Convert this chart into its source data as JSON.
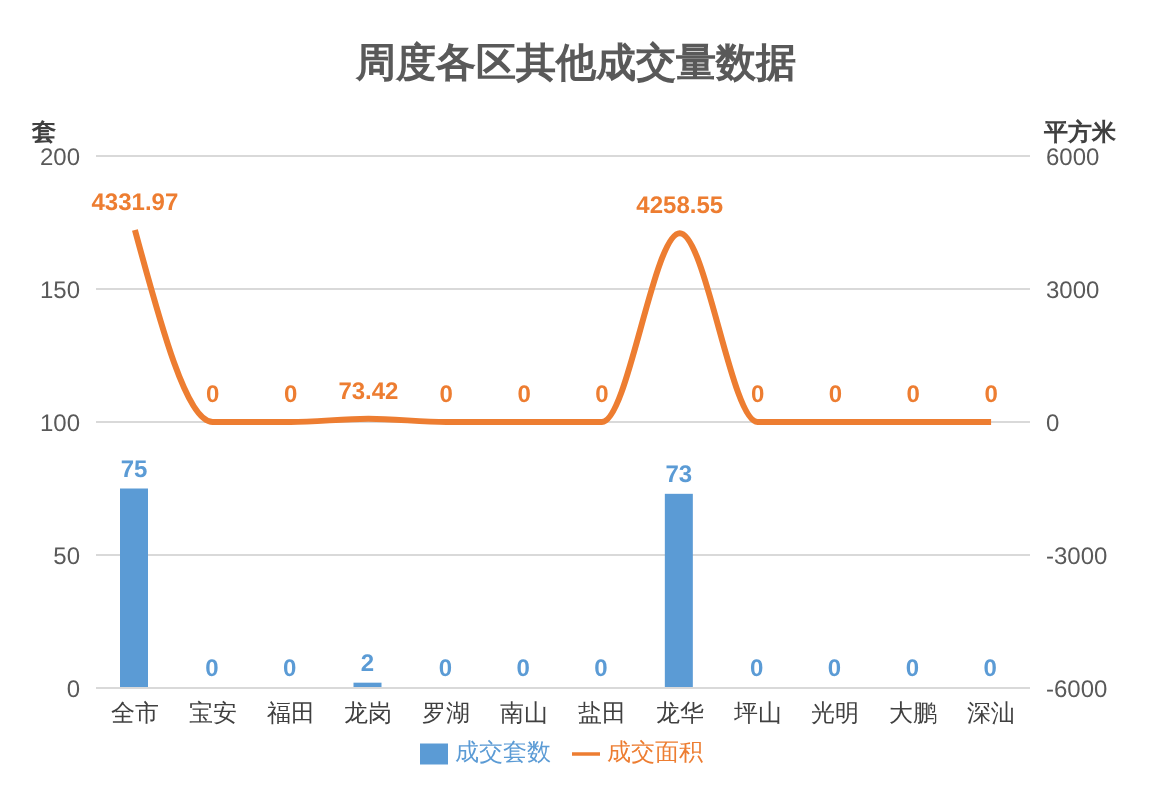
{
  "chart_data": {
    "type": "bar",
    "title": "周度各区其他成交量数据",
    "ylabel": "套",
    "y2label": "平方米",
    "categories": [
      "全市",
      "宝安",
      "福田",
      "龙岗",
      "罗湖",
      "南山",
      "盐田",
      "龙华",
      "坪山",
      "光明",
      "大鹏",
      "深汕"
    ],
    "series": [
      {
        "name": "成交套数",
        "color": "#5b9bd5",
        "values": [
          75,
          0,
          0,
          2,
          0,
          0,
          0,
          73,
          0,
          0,
          0,
          0
        ]
      },
      {
        "name": "成交面积",
        "type": "line",
        "axis": "y2",
        "color": "#ed7d31",
        "values": [
          4331.97,
          0,
          0,
          73.42,
          0,
          0,
          0,
          4258.55,
          0,
          0,
          0,
          0
        ]
      }
    ],
    "ylim": [
      0,
      200
    ],
    "yticks": [
      0,
      50,
      100,
      150,
      200
    ],
    "y2lim": [
      -6000,
      6000
    ],
    "y2ticks": [
      -6000,
      -3000,
      0,
      3000,
      6000
    ],
    "grid": "y",
    "legend": "bottom",
    "data_labels": true,
    "marker": "none"
  }
}
